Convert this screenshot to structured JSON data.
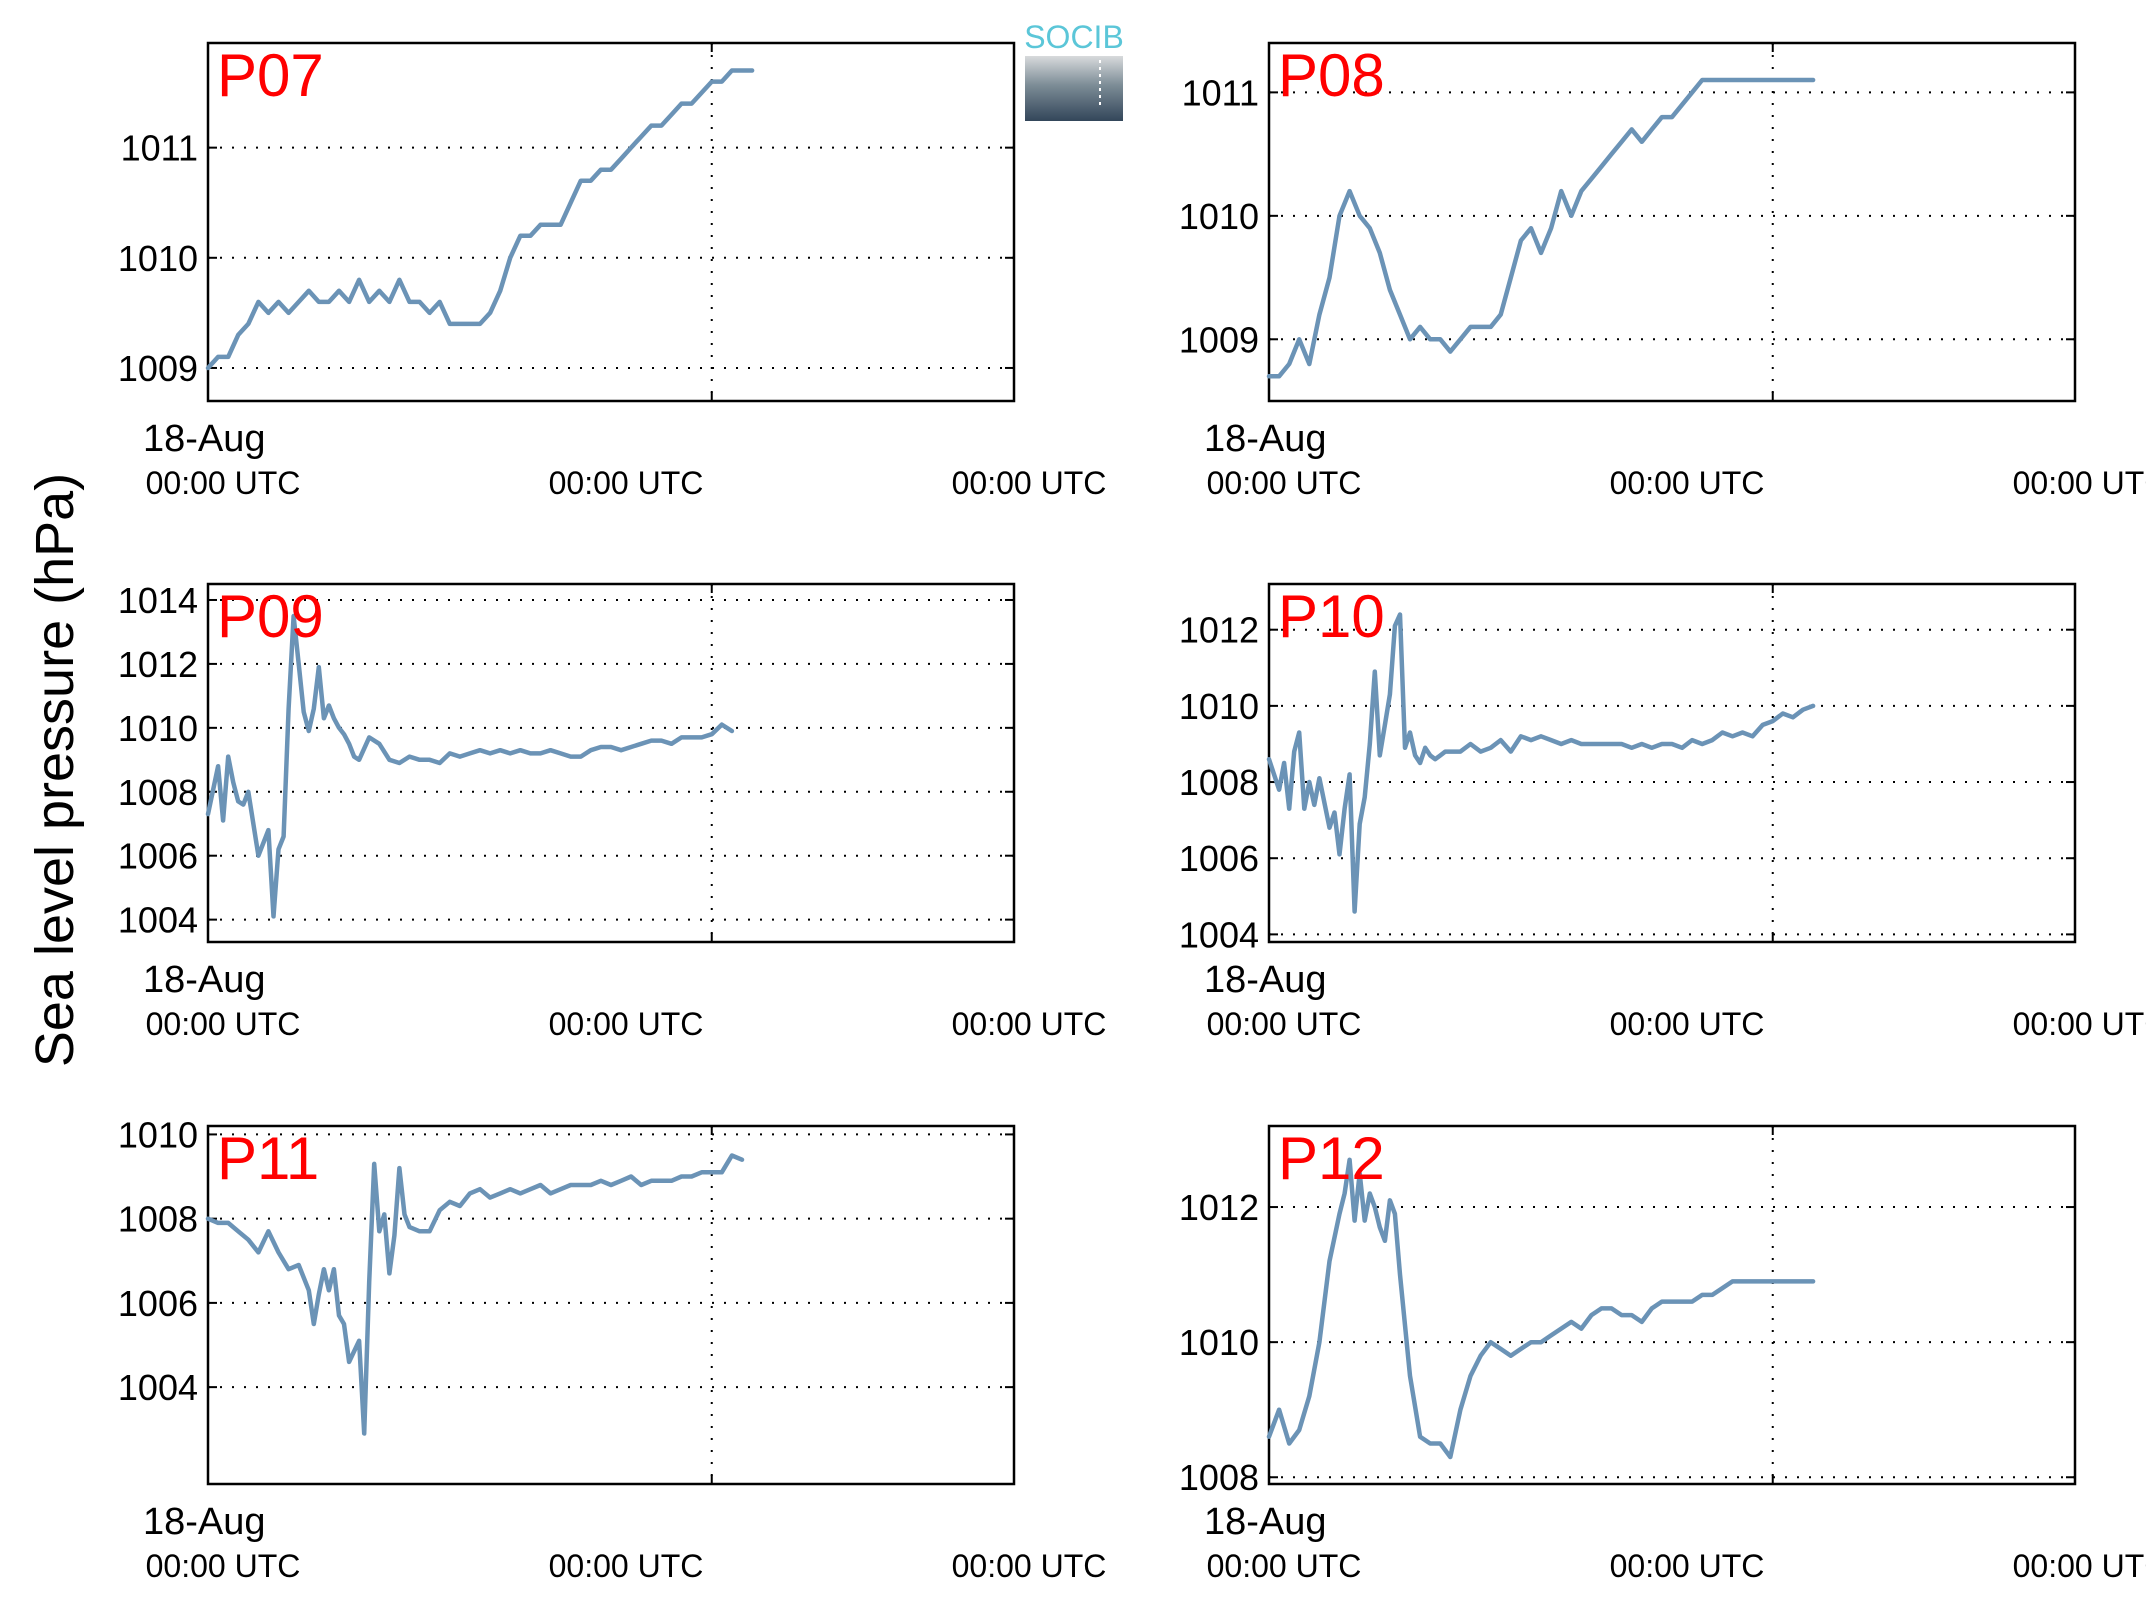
{
  "figure": {
    "ylabel": "Sea level pressure (hPa)",
    "date_label": "18-Aug",
    "time_label": "00:00 UTC",
    "logo_text": "SOCIB",
    "line_color": "#6b93b6",
    "panel_label_color": "#ff0000",
    "logo_color": "#5bc6d8"
  },
  "chart_data": [
    {
      "type": "line",
      "title": "P07",
      "ylim": [
        1008.7,
        1011.95
      ],
      "yticks": [
        1009,
        1010,
        1011
      ],
      "xlim": [
        0,
        1.6
      ],
      "vline": 1.0,
      "series": [
        {
          "x": [
            0,
            0.02,
            0.04,
            0.06,
            0.08,
            0.1,
            0.12,
            0.14,
            0.16,
            0.18,
            0.2,
            0.22,
            0.24,
            0.26,
            0.28,
            0.3,
            0.32,
            0.34,
            0.36,
            0.38,
            0.4,
            0.42,
            0.44,
            0.46,
            0.48,
            0.5,
            0.52,
            0.54,
            0.56,
            0.58,
            0.6,
            0.62,
            0.64,
            0.66,
            0.68,
            0.7,
            0.72,
            0.74,
            0.76,
            0.78,
            0.8,
            0.82,
            0.84,
            0.86,
            0.88,
            0.9,
            0.92,
            0.94,
            0.96,
            0.98,
            1.0,
            1.02,
            1.04,
            1.06,
            1.08
          ],
          "y": [
            1009.0,
            1009.1,
            1009.1,
            1009.3,
            1009.4,
            1009.6,
            1009.5,
            1009.6,
            1009.5,
            1009.6,
            1009.7,
            1009.6,
            1009.6,
            1009.7,
            1009.6,
            1009.8,
            1009.6,
            1009.7,
            1009.6,
            1009.8,
            1009.6,
            1009.6,
            1009.5,
            1009.6,
            1009.4,
            1009.4,
            1009.4,
            1009.4,
            1009.5,
            1009.7,
            1010.0,
            1010.2,
            1010.2,
            1010.3,
            1010.3,
            1010.3,
            1010.5,
            1010.7,
            1010.7,
            1010.8,
            1010.8,
            1010.9,
            1011.0,
            1011.1,
            1011.2,
            1011.2,
            1011.3,
            1011.4,
            1011.4,
            1011.5,
            1011.6,
            1011.6,
            1011.7,
            1011.7,
            1011.7
          ]
        }
      ]
    },
    {
      "type": "line",
      "title": "P08",
      "ylim": [
        1008.5,
        1011.4
      ],
      "yticks": [
        1009,
        1010,
        1011
      ],
      "xlim": [
        0,
        1.6
      ],
      "vline": 1.0,
      "series": [
        {
          "x": [
            0,
            0.02,
            0.04,
            0.06,
            0.08,
            0.1,
            0.12,
            0.14,
            0.16,
            0.18,
            0.2,
            0.22,
            0.24,
            0.26,
            0.28,
            0.3,
            0.32,
            0.34,
            0.36,
            0.38,
            0.4,
            0.42,
            0.44,
            0.46,
            0.48,
            0.5,
            0.52,
            0.54,
            0.56,
            0.58,
            0.6,
            0.62,
            0.64,
            0.66,
            0.68,
            0.7,
            0.72,
            0.74,
            0.76,
            0.78,
            0.8,
            0.82,
            0.84,
            0.86,
            0.88,
            0.9,
            0.92,
            0.94,
            0.96,
            0.98,
            1.0,
            1.02,
            1.04,
            1.06,
            1.08
          ],
          "y": [
            1008.7,
            1008.7,
            1008.8,
            1009.0,
            1008.8,
            1009.2,
            1009.5,
            1010.0,
            1010.2,
            1010.0,
            1009.9,
            1009.7,
            1009.4,
            1009.2,
            1009.0,
            1009.1,
            1009.0,
            1009.0,
            1008.9,
            1009.0,
            1009.1,
            1009.1,
            1009.1,
            1009.2,
            1009.5,
            1009.8,
            1009.9,
            1009.7,
            1009.9,
            1010.2,
            1010.0,
            1010.2,
            1010.3,
            1010.4,
            1010.5,
            1010.6,
            1010.7,
            1010.6,
            1010.7,
            1010.8,
            1010.8,
            1010.9,
            1011.0,
            1011.1,
            1011.1,
            1011.1,
            1011.1,
            1011.1,
            1011.1,
            1011.1,
            1011.1,
            1011.1,
            1011.1,
            1011.1,
            1011.1
          ]
        }
      ]
    },
    {
      "type": "line",
      "title": "P09",
      "ylim": [
        1003.3,
        1014.5
      ],
      "yticks": [
        1004,
        1006,
        1008,
        1010,
        1012,
        1014
      ],
      "xlim": [
        0,
        1.6
      ],
      "vline": 1.0,
      "series": [
        {
          "x": [
            0,
            0.02,
            0.03,
            0.04,
            0.05,
            0.06,
            0.07,
            0.08,
            0.1,
            0.12,
            0.13,
            0.14,
            0.15,
            0.16,
            0.17,
            0.18,
            0.19,
            0.2,
            0.21,
            0.22,
            0.23,
            0.24,
            0.25,
            0.26,
            0.27,
            0.28,
            0.29,
            0.3,
            0.32,
            0.34,
            0.36,
            0.38,
            0.4,
            0.42,
            0.44,
            0.46,
            0.48,
            0.5,
            0.52,
            0.54,
            0.56,
            0.58,
            0.6,
            0.62,
            0.64,
            0.66,
            0.68,
            0.7,
            0.72,
            0.74,
            0.76,
            0.78,
            0.8,
            0.82,
            0.84,
            0.86,
            0.88,
            0.9,
            0.92,
            0.94,
            0.96,
            0.98,
            1.0,
            1.02,
            1.04
          ],
          "y": [
            1007.3,
            1008.8,
            1007.1,
            1009.1,
            1008.3,
            1007.7,
            1007.6,
            1008.0,
            1006.0,
            1006.8,
            1004.1,
            1006.2,
            1006.6,
            1010.6,
            1013.5,
            1012.0,
            1010.5,
            1009.9,
            1010.6,
            1011.9,
            1010.3,
            1010.7,
            1010.3,
            1010.0,
            1009.8,
            1009.5,
            1009.1,
            1009.0,
            1009.7,
            1009.5,
            1009.0,
            1008.9,
            1009.1,
            1009.0,
            1009.0,
            1008.9,
            1009.2,
            1009.1,
            1009.2,
            1009.3,
            1009.2,
            1009.3,
            1009.2,
            1009.3,
            1009.2,
            1009.2,
            1009.3,
            1009.2,
            1009.1,
            1009.1,
            1009.3,
            1009.4,
            1009.4,
            1009.3,
            1009.4,
            1009.5,
            1009.6,
            1009.6,
            1009.5,
            1009.7,
            1009.7,
            1009.7,
            1009.8,
            1010.1,
            1009.9
          ]
        }
      ]
    },
    {
      "type": "line",
      "title": "P10",
      "ylim": [
        1003.8,
        1013.2
      ],
      "yticks": [
        1004,
        1006,
        1008,
        1010,
        1012
      ],
      "xlim": [
        0,
        1.6
      ],
      "vline": 1.0,
      "series": [
        {
          "x": [
            0,
            0.02,
            0.03,
            0.04,
            0.05,
            0.06,
            0.07,
            0.08,
            0.09,
            0.1,
            0.12,
            0.13,
            0.14,
            0.15,
            0.16,
            0.17,
            0.18,
            0.19,
            0.2,
            0.21,
            0.22,
            0.23,
            0.24,
            0.25,
            0.26,
            0.27,
            0.28,
            0.29,
            0.3,
            0.31,
            0.32,
            0.33,
            0.34,
            0.35,
            0.36,
            0.38,
            0.4,
            0.42,
            0.44,
            0.46,
            0.48,
            0.5,
            0.52,
            0.54,
            0.56,
            0.58,
            0.6,
            0.62,
            0.64,
            0.66,
            0.68,
            0.7,
            0.72,
            0.74,
            0.76,
            0.78,
            0.8,
            0.82,
            0.84,
            0.86,
            0.88,
            0.9,
            0.92,
            0.94,
            0.96,
            0.98,
            1.0,
            1.02,
            1.04,
            1.06,
            1.08
          ],
          "y": [
            1008.6,
            1007.8,
            1008.5,
            1007.3,
            1008.8,
            1009.3,
            1007.3,
            1008.0,
            1007.4,
            1008.1,
            1006.8,
            1007.2,
            1006.1,
            1007.3,
            1008.2,
            1004.6,
            1006.9,
            1007.6,
            1009.0,
            1010.9,
            1008.7,
            1009.5,
            1010.3,
            1012.1,
            1012.4,
            1008.9,
            1009.3,
            1008.7,
            1008.5,
            1008.9,
            1008.7,
            1008.6,
            1008.7,
            1008.8,
            1008.8,
            1008.8,
            1009.0,
            1008.8,
            1008.9,
            1009.1,
            1008.8,
            1009.2,
            1009.1,
            1009.2,
            1009.1,
            1009.0,
            1009.1,
            1009.0,
            1009.0,
            1009.0,
            1009.0,
            1009.0,
            1008.9,
            1009.0,
            1008.9,
            1009.0,
            1009.0,
            1008.9,
            1009.1,
            1009.0,
            1009.1,
            1009.3,
            1009.2,
            1009.3,
            1009.2,
            1009.5,
            1009.6,
            1009.8,
            1009.7,
            1009.9,
            1010.0
          ]
        }
      ]
    },
    {
      "type": "line",
      "title": "P11",
      "ylim": [
        1001.7,
        1010.2
      ],
      "yticks": [
        1004,
        1006,
        1008,
        1010
      ],
      "xlim": [
        0,
        1.6
      ],
      "vline": 1.0,
      "series": [
        {
          "x": [
            0,
            0.02,
            0.04,
            0.06,
            0.08,
            0.1,
            0.12,
            0.14,
            0.16,
            0.18,
            0.2,
            0.21,
            0.22,
            0.23,
            0.24,
            0.25,
            0.26,
            0.27,
            0.28,
            0.3,
            0.31,
            0.32,
            0.33,
            0.34,
            0.35,
            0.36,
            0.37,
            0.38,
            0.39,
            0.4,
            0.42,
            0.44,
            0.46,
            0.48,
            0.5,
            0.52,
            0.54,
            0.56,
            0.58,
            0.6,
            0.62,
            0.64,
            0.66,
            0.68,
            0.7,
            0.72,
            0.74,
            0.76,
            0.78,
            0.8,
            0.82,
            0.84,
            0.86,
            0.88,
            0.9,
            0.92,
            0.94,
            0.96,
            0.98,
            1.0,
            1.02,
            1.04,
            1.06
          ],
          "y": [
            1008.0,
            1007.9,
            1007.9,
            1007.7,
            1007.5,
            1007.2,
            1007.7,
            1007.2,
            1006.8,
            1006.9,
            1006.3,
            1005.5,
            1006.2,
            1006.8,
            1006.3,
            1006.8,
            1005.7,
            1005.5,
            1004.6,
            1005.1,
            1002.9,
            1006.5,
            1009.3,
            1007.7,
            1008.1,
            1006.7,
            1007.6,
            1009.2,
            1008.1,
            1007.8,
            1007.7,
            1007.7,
            1008.2,
            1008.4,
            1008.3,
            1008.6,
            1008.7,
            1008.5,
            1008.6,
            1008.7,
            1008.6,
            1008.7,
            1008.8,
            1008.6,
            1008.7,
            1008.8,
            1008.8,
            1008.8,
            1008.9,
            1008.8,
            1008.9,
            1009.0,
            1008.8,
            1008.9,
            1008.9,
            1008.9,
            1009.0,
            1009.0,
            1009.1,
            1009.1,
            1009.1,
            1009.5,
            1009.4
          ]
        }
      ]
    },
    {
      "type": "line",
      "title": "P12",
      "ylim": [
        1007.9,
        1013.2
      ],
      "yticks": [
        1008,
        1010,
        1012
      ],
      "xlim": [
        0,
        1.6
      ],
      "vline": 1.0,
      "series": [
        {
          "x": [
            0,
            0.02,
            0.04,
            0.06,
            0.08,
            0.1,
            0.12,
            0.14,
            0.15,
            0.16,
            0.17,
            0.18,
            0.19,
            0.2,
            0.21,
            0.22,
            0.23,
            0.24,
            0.25,
            0.26,
            0.28,
            0.3,
            0.32,
            0.34,
            0.36,
            0.38,
            0.4,
            0.42,
            0.44,
            0.46,
            0.48,
            0.5,
            0.52,
            0.54,
            0.56,
            0.58,
            0.6,
            0.62,
            0.64,
            0.66,
            0.68,
            0.7,
            0.72,
            0.74,
            0.76,
            0.78,
            0.8,
            0.82,
            0.84,
            0.86,
            0.88,
            0.9,
            0.92,
            0.94,
            0.96,
            0.98,
            1.0,
            1.02,
            1.04,
            1.06,
            1.08
          ],
          "y": [
            1008.6,
            1009.0,
            1008.5,
            1008.7,
            1009.2,
            1010.0,
            1011.2,
            1011.9,
            1012.2,
            1012.7,
            1011.8,
            1012.5,
            1011.8,
            1012.2,
            1012.0,
            1011.7,
            1011.5,
            1012.1,
            1011.9,
            1011.0,
            1009.5,
            1008.6,
            1008.5,
            1008.5,
            1008.3,
            1009.0,
            1009.5,
            1009.8,
            1010.0,
            1009.9,
            1009.8,
            1009.9,
            1010.0,
            1010.0,
            1010.1,
            1010.2,
            1010.3,
            1010.2,
            1010.4,
            1010.5,
            1010.5,
            1010.4,
            1010.4,
            1010.3,
            1010.5,
            1010.6,
            1010.6,
            1010.6,
            1010.6,
            1010.7,
            1010.7,
            1010.8,
            1010.9,
            1010.9,
            1010.9,
            1010.9,
            1010.9,
            1010.9,
            1010.9,
            1010.9,
            1010.9
          ]
        }
      ]
    }
  ]
}
